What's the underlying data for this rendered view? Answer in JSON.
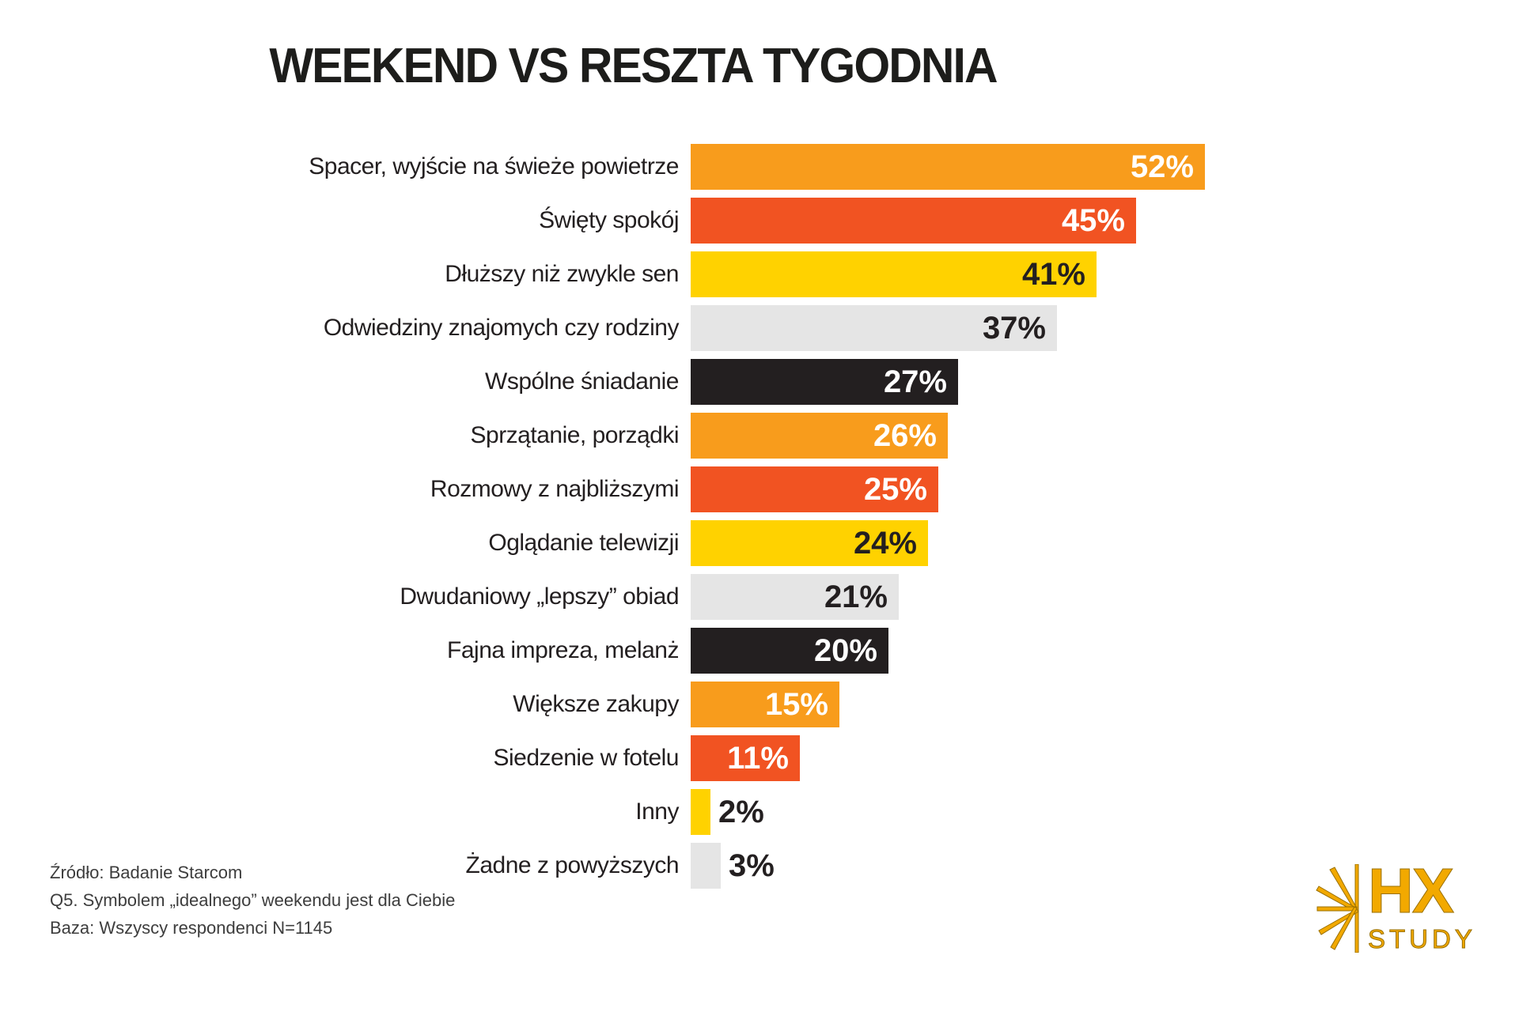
{
  "title": "WEEKEND VS RESZTA TYGODNIA",
  "chart_data": {
    "type": "bar",
    "orientation": "horizontal",
    "title": "WEEKEND VS RESZTA TYGODNIA",
    "categories": [
      "Spacer, wyjście na świeże powietrze",
      "Święty spokój",
      "Dłuższy niż zwykle sen",
      "Odwiedziny znajomych czy rodziny",
      "Wspólne śniadanie",
      "Sprzątanie, porządki",
      "Rozmowy z najbliższymi",
      "Oglądanie telewizji",
      "Dwudaniowy „lepszy” obiad",
      "Fajna impreza, melanż",
      "Większe zakupy",
      "Siedzenie w fotelu",
      "Inny",
      "Żadne z powyższych"
    ],
    "values": [
      52,
      45,
      41,
      37,
      27,
      26,
      25,
      24,
      21,
      20,
      15,
      11,
      2,
      3
    ],
    "value_suffix": "%",
    "xlim": [
      0,
      100
    ],
    "grid": false,
    "legend": false,
    "bar_colors": [
      "orange",
      "red",
      "yellow",
      "gray",
      "black",
      "orange",
      "red",
      "yellow",
      "gray",
      "black",
      "orange",
      "red",
      "yellow",
      "gray"
    ],
    "palette": {
      "orange": "#F89C1C",
      "red": "#F15322",
      "yellow": "#FFD200",
      "gray": "#E5E5E5",
      "black": "#231F20"
    },
    "value_text_light": "#FFFFFF",
    "value_text_dark": "#231F20",
    "dark_text_on": [
      "yellow",
      "gray"
    ],
    "outside_label_below_percent": 5
  },
  "footer": {
    "source": "Źródło: Badanie Starcom",
    "question": "Q5. Symbolem „idealnego” weekendu jest dla Ciebie",
    "base": "Baza: Wszyscy respondenci N=1145"
  },
  "logo": {
    "main": "HX",
    "sub": "STUDY",
    "color": "#F2A900",
    "icon": "starburst-icon"
  }
}
